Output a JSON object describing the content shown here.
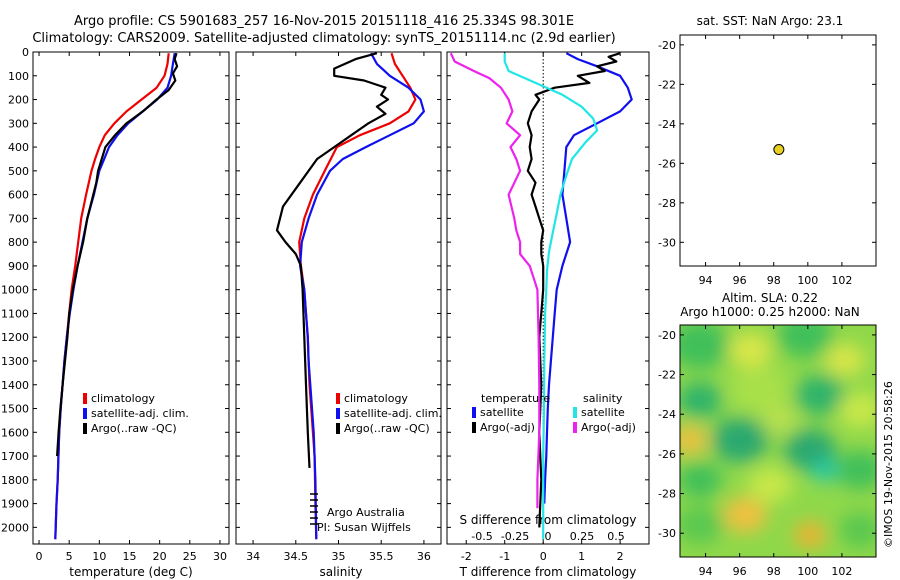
{
  "header": {
    "line1": "Argo profile: CS 5901683_257 16-Nov-2015 20151118_416 25.334S 98.301E",
    "line2": "Climatology: CARS2009. Satellite-adjusted climatology: synTS_20151114.nc (2.9d earlier)"
  },
  "colors": {
    "red": "#ee0000",
    "blue": "#1010ee",
    "black": "#000000",
    "cyan": "#22e6e6",
    "magenta": "#ee22ee",
    "dot": "#e8d020"
  },
  "credit": {
    "line1": "Argo Australia",
    "line2": "PI: Susan Wijffels"
  },
  "watermark": "©IMOS 19-Nov-2015 20:58:26",
  "chart_data": [
    {
      "type": "line",
      "panel": "temperature",
      "xlabel": "temperature (deg C)",
      "ylabel": "",
      "xlim": [
        -1,
        31.5
      ],
      "ylim": [
        2070,
        0
      ],
      "xticks": [
        0,
        5,
        10,
        15,
        20,
        25,
        30
      ],
      "yticks": [
        0,
        100,
        200,
        300,
        400,
        500,
        600,
        700,
        800,
        900,
        1000,
        1100,
        1200,
        1300,
        1400,
        1500,
        1600,
        1700,
        1800,
        1900,
        2000
      ],
      "legend": [
        "climatology",
        "satellite-adj. clim.",
        "Argo(..raw -QC)"
      ],
      "series": [
        {
          "name": "climatology",
          "color": "#ee0000",
          "x": [
            21.5,
            21.3,
            20.8,
            19.5,
            17,
            14.5,
            12.5,
            10.9,
            10,
            9.3,
            8.7,
            7.8,
            7,
            6.5,
            6,
            5.4,
            5,
            4.6,
            4.2,
            3.9,
            3.6,
            3.35,
            3.1,
            2.9,
            2.7
          ],
          "y": [
            5,
            50,
            100,
            150,
            200,
            250,
            300,
            350,
            400,
            450,
            500,
            600,
            700,
            800,
            900,
            1000,
            1100,
            1200,
            1300,
            1400,
            1500,
            1600,
            1800,
            1900,
            2050
          ]
        },
        {
          "name": "satellite-adj. clim.",
          "color": "#1010ee",
          "x": [
            22.5,
            22.2,
            21.9,
            21.3,
            19.6,
            17.2,
            14.8,
            13,
            11.6,
            10.8,
            10,
            9.1,
            8,
            7.2,
            6.4,
            5.7,
            5.1,
            4.6,
            4.2,
            3.9,
            3.6,
            3.35,
            3.1,
            2.9,
            2.7
          ],
          "y": [
            5,
            50,
            100,
            150,
            200,
            250,
            300,
            350,
            400,
            450,
            500,
            600,
            700,
            800,
            900,
            1000,
            1100,
            1200,
            1300,
            1400,
            1500,
            1600,
            1800,
            1900,
            2050
          ]
        },
        {
          "name": "Argo(..raw -QC)",
          "color": "#000000",
          "x": [
            22.8,
            22.5,
            22.9,
            22.2,
            22.6,
            21.5,
            19.5,
            17.2,
            14.5,
            12.6,
            11,
            9.8,
            9.5,
            9,
            8,
            7.3,
            6.4,
            5.6,
            5,
            4.7,
            4.3,
            3.9,
            3.55,
            3.25,
            3
          ],
          "y": [
            5,
            30,
            60,
            90,
            120,
            160,
            200,
            250,
            300,
            350,
            400,
            500,
            550,
            600,
            700,
            800,
            900,
            1000,
            1100,
            1200,
            1300,
            1400,
            1500,
            1600,
            1700
          ]
        }
      ]
    },
    {
      "type": "line",
      "panel": "salinity",
      "xlabel": "salinity",
      "ylabel": "",
      "xlim": [
        33.8,
        36.2
      ],
      "ylim": [
        2070,
        0
      ],
      "xticks": [
        34,
        34.5,
        35,
        35.5,
        36
      ],
      "legend": [
        "climatology",
        "satellite-adj. clim.",
        "Argo(..raw -QC)"
      ],
      "series": [
        {
          "name": "climatology",
          "color": "#ee0000",
          "x": [
            35.62,
            35.66,
            35.75,
            35.84,
            35.9,
            35.82,
            35.6,
            35.25,
            34.98,
            34.84,
            34.7,
            34.6,
            34.54,
            34.56,
            34.6,
            34.62,
            34.64,
            34.65,
            34.66,
            34.68,
            34.7,
            34.72,
            34.73,
            34.74
          ],
          "y": [
            5,
            50,
            100,
            150,
            200,
            250,
            300,
            350,
            400,
            500,
            600,
            700,
            800,
            900,
            1000,
            1100,
            1200,
            1300,
            1400,
            1500,
            1600,
            1700,
            1900,
            2050
          ]
        },
        {
          "name": "satellite-adj. clim.",
          "color": "#1010ee",
          "x": [
            35.38,
            35.45,
            35.6,
            35.82,
            35.96,
            36.0,
            35.88,
            35.6,
            35.32,
            35.05,
            34.9,
            34.75,
            34.65,
            34.57,
            34.55,
            34.6,
            34.62,
            34.64,
            34.65,
            34.67,
            34.69,
            34.71,
            34.73,
            34.74
          ],
          "y": [
            5,
            50,
            100,
            150,
            200,
            250,
            300,
            350,
            400,
            450,
            500,
            600,
            700,
            800,
            900,
            1000,
            1100,
            1200,
            1300,
            1400,
            1500,
            1600,
            1800,
            2050
          ]
        },
        {
          "name": "Argo(..raw -QC)",
          "color": "#000000",
          "x": [
            35.45,
            35.2,
            34.95,
            34.95,
            35.3,
            35.55,
            35.5,
            35.58,
            35.45,
            35.55,
            35.35,
            35.15,
            34.95,
            34.75,
            34.55,
            34.35,
            34.28,
            34.38,
            34.5,
            34.56,
            34.58,
            34.6,
            34.62,
            34.64,
            34.66
          ],
          "y": [
            5,
            30,
            70,
            100,
            120,
            150,
            180,
            200,
            230,
            260,
            300,
            350,
            400,
            450,
            550,
            650,
            750,
            800,
            850,
            900,
            1000,
            1200,
            1400,
            1600,
            1750
          ]
        }
      ]
    },
    {
      "type": "line",
      "panel": "difference",
      "xlabel": "T difference from climatology",
      "xlabel_top": "S difference from climatology",
      "xlim": [
        -2.5,
        2.75
      ],
      "ylim": [
        2070,
        0
      ],
      "xticks_T": [
        -2,
        -1,
        0,
        1,
        2
      ],
      "xticks_S": [
        -0.5,
        -0.25,
        0,
        0.25,
        0.5
      ],
      "legend_titles": [
        "temperature",
        "salinity"
      ],
      "legend": [
        "satellite",
        "Argo(-adj)",
        "satellite",
        "Argo(-adj)"
      ],
      "series": [
        {
          "name": "satellite",
          "group": "temperature",
          "color": "#1010ee",
          "x": [
            0.6,
            0.9,
            1.4,
            2.0,
            2.2,
            2.3,
            2.0,
            1.4,
            0.8,
            0.6,
            0.55,
            0.5,
            0.6,
            0.7,
            0.5,
            0.35,
            0.3,
            0.25,
            0.2,
            0.15,
            0.12,
            0.1,
            0.08,
            0.05,
            0.03
          ],
          "y": [
            5,
            30,
            60,
            100,
            150,
            200,
            250,
            300,
            350,
            400,
            500,
            600,
            700,
            800,
            900,
            1000,
            1100,
            1200,
            1300,
            1400,
            1500,
            1600,
            1700,
            1800,
            1900
          ]
        },
        {
          "name": "Argo(-adj)",
          "group": "temperature",
          "color": "#000000",
          "x": [
            2.0,
            1.7,
            1.9,
            1.4,
            1.6,
            0.9,
            1.2,
            0.3,
            -0.2,
            -0.1,
            -0.3,
            -0.4,
            -0.3,
            -0.35,
            -0.3,
            -0.4,
            -0.2,
            -0.3,
            -0.2,
            -0.1,
            0.0,
            -0.05,
            -0.05,
            0.0,
            0.0,
            -0.1,
            -0.05,
            -0.1,
            -0.05,
            -0.1
          ],
          "y": [
            5,
            20,
            40,
            60,
            80,
            100,
            130,
            150,
            180,
            200,
            250,
            300,
            350,
            400,
            450,
            500,
            550,
            600,
            650,
            700,
            750,
            800,
            850,
            900,
            1000,
            1200,
            1400,
            1600,
            1800,
            2000
          ]
        },
        {
          "name": "satellite",
          "group": "salinity",
          "color": "#22e6e6",
          "x": [
            -1.0,
            -1.0,
            -0.9,
            -0.2,
            0.5,
            1.0,
            1.3,
            1.4,
            1.1,
            0.75,
            0.6,
            0.45,
            0.35,
            0.25,
            0.15,
            0.1,
            0.08,
            0.05,
            0.03,
            0.02,
            0.0,
            0.0,
            0.0,
            0.0
          ],
          "y": [
            5,
            40,
            80,
            130,
            180,
            230,
            280,
            330,
            380,
            450,
            520,
            600,
            680,
            760,
            840,
            920,
            1000,
            1100,
            1300,
            1500,
            1700,
            1900,
            2000,
            2050
          ]
        },
        {
          "name": "Argo(-adj)",
          "group": "salinity",
          "color": "#ee22ee",
          "x": [
            -2.4,
            -2.3,
            -1.8,
            -1.4,
            -1.1,
            -0.9,
            -0.8,
            -0.95,
            -0.6,
            -0.85,
            -0.7,
            -0.6,
            -0.9,
            -0.75,
            -0.7,
            -0.6,
            -0.6,
            -0.35,
            -0.25,
            -0.15,
            -0.12,
            -0.1,
            -0.1,
            -0.15,
            -0.15
          ],
          "y": [
            5,
            40,
            80,
            110,
            150,
            200,
            250,
            300,
            350,
            400,
            450,
            500,
            600,
            700,
            750,
            800,
            850,
            900,
            950,
            1000,
            1200,
            1400,
            1600,
            1800,
            1920
          ]
        }
      ]
    },
    {
      "type": "scatter",
      "panel": "sst-map",
      "title": "sat. SST: NaN Argo: 23.1",
      "xlim": [
        92.5,
        104
      ],
      "ylim": [
        -31.2,
        -19.5
      ],
      "xticks": [
        94,
        96,
        98,
        100,
        102
      ],
      "yticks": [
        -20,
        -22,
        -24,
        -26,
        -28,
        -30
      ],
      "points": [
        {
          "x": 98.3,
          "y": -25.3
        }
      ]
    },
    {
      "type": "heatmap",
      "panel": "sla-map",
      "title_line1": "Altim. SLA: 0.22",
      "title_line2": "Argo h1000: 0.25 h2000: NaN",
      "xlim": [
        92.5,
        104
      ],
      "ylim": [
        -31.2,
        -19.5
      ],
      "xticks": [
        94,
        96,
        98,
        100,
        102
      ],
      "yticks": [
        -20,
        -22,
        -24,
        -26,
        -28,
        -30
      ]
    }
  ]
}
